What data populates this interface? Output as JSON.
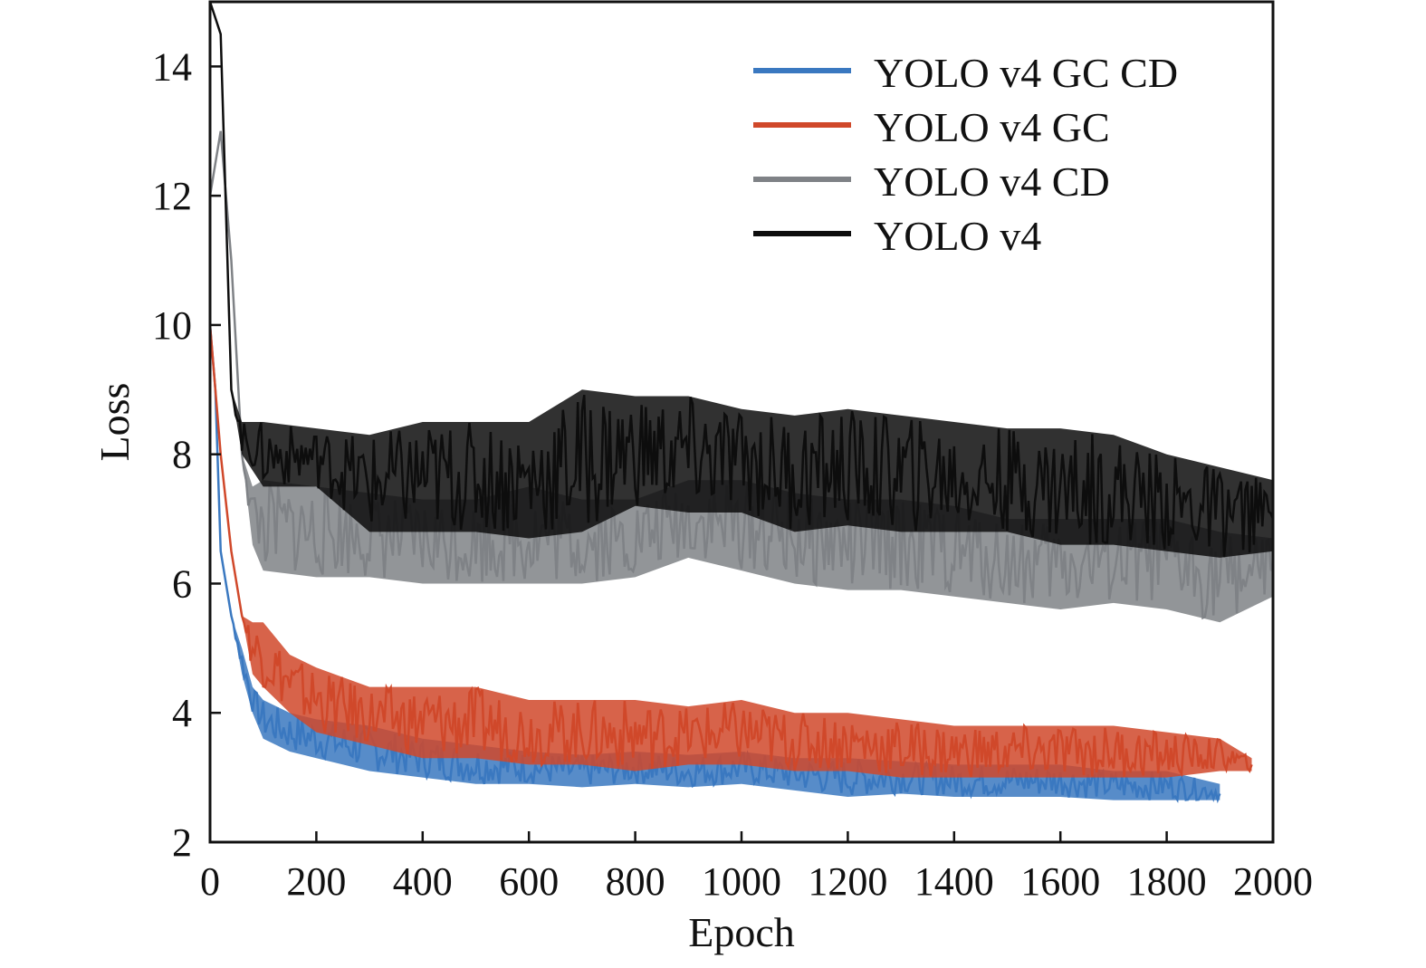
{
  "chart_data": {
    "type": "line",
    "title": "",
    "xlabel": "Epoch",
    "ylabel": "Loss",
    "xlim": [
      0,
      2000
    ],
    "ylim": [
      2,
      15
    ],
    "xticks": [
      0,
      200,
      400,
      600,
      800,
      1000,
      1200,
      1400,
      1600,
      1800,
      2000
    ],
    "yticks": [
      2,
      4,
      6,
      8,
      10,
      12,
      14
    ],
    "grid": false,
    "legend_position": "top-right",
    "series": [
      {
        "name": "YOLO v4 GC CD",
        "color": "#3a78c0",
        "x": [
          0,
          10,
          20,
          40,
          60,
          80,
          100,
          150,
          200,
          300,
          400,
          500,
          600,
          700,
          800,
          900,
          1000,
          1100,
          1200,
          1300,
          1400,
          1500,
          1600,
          1700,
          1800,
          1900
        ],
        "y": [
          10,
          9,
          6.5,
          5.5,
          4.8,
          4.2,
          3.9,
          3.7,
          3.6,
          3.4,
          3.3,
          3.2,
          3.1,
          3.05,
          3.1,
          3.05,
          3.1,
          3.0,
          2.95,
          2.95,
          2.9,
          2.9,
          2.9,
          2.85,
          2.85,
          2.75
        ],
        "low": [
          10,
          9,
          6.5,
          5.5,
          4.6,
          4.0,
          3.6,
          3.4,
          3.3,
          3.1,
          3.0,
          2.9,
          2.9,
          2.85,
          2.9,
          2.85,
          2.9,
          2.8,
          2.7,
          2.75,
          2.7,
          2.7,
          2.7,
          2.65,
          2.65,
          2.65
        ],
        "high": [
          10,
          9,
          6.5,
          5.5,
          5.0,
          4.4,
          4.2,
          4.0,
          3.9,
          3.8,
          3.6,
          3.5,
          3.4,
          3.35,
          3.4,
          3.35,
          3.4,
          3.3,
          3.3,
          3.25,
          3.2,
          3.2,
          3.2,
          3.1,
          3.1,
          2.9
        ]
      },
      {
        "name": "YOLO v4 GC",
        "color": "#d0482a",
        "x": [
          0,
          20,
          40,
          60,
          80,
          100,
          150,
          200,
          300,
          400,
          500,
          600,
          700,
          800,
          900,
          1000,
          1100,
          1200,
          1300,
          1400,
          1500,
          1600,
          1700,
          1800,
          1900,
          1960
        ],
        "y": [
          10,
          8,
          6.5,
          5.5,
          5.0,
          4.8,
          4.4,
          4.1,
          3.9,
          3.8,
          3.75,
          3.65,
          3.6,
          3.55,
          3.6,
          3.6,
          3.55,
          3.5,
          3.45,
          3.4,
          3.4,
          3.35,
          3.35,
          3.35,
          3.3,
          3.2
        ],
        "low": [
          10,
          8,
          6.5,
          5.5,
          4.6,
          4.4,
          4.0,
          3.7,
          3.5,
          3.3,
          3.3,
          3.2,
          3.2,
          3.1,
          3.2,
          3.2,
          3.1,
          3.1,
          3.0,
          3.0,
          3.0,
          3.0,
          3.0,
          3.0,
          3.1,
          3.1
        ],
        "high": [
          10,
          8,
          6.5,
          5.5,
          5.4,
          5.4,
          4.9,
          4.7,
          4.4,
          4.4,
          4.4,
          4.2,
          4.2,
          4.2,
          4.1,
          4.2,
          4.0,
          4.0,
          3.9,
          3.8,
          3.8,
          3.8,
          3.8,
          3.7,
          3.6,
          3.3
        ]
      },
      {
        "name": "YOLO v4 CD",
        "color": "#7f8286",
        "x": [
          0,
          20,
          40,
          60,
          80,
          100,
          200,
          300,
          400,
          500,
          600,
          700,
          800,
          900,
          1000,
          1100,
          1200,
          1300,
          1400,
          1500,
          1600,
          1700,
          1800,
          1900,
          2000
        ],
        "y": [
          12,
          13,
          11,
          8,
          7,
          6.9,
          6.8,
          6.7,
          6.6,
          6.6,
          6.7,
          6.6,
          6.7,
          7.0,
          6.9,
          6.7,
          6.6,
          6.6,
          6.5,
          6.4,
          6.3,
          6.3,
          6.3,
          6.0,
          6.2
        ],
        "low": [
          12,
          13,
          11,
          8,
          6.6,
          6.2,
          6.1,
          6.1,
          6.0,
          6.0,
          6.0,
          6.0,
          6.1,
          6.4,
          6.2,
          6.0,
          5.9,
          5.9,
          5.8,
          5.7,
          5.6,
          5.7,
          5.6,
          5.4,
          5.8
        ],
        "high": [
          12,
          13,
          11,
          8,
          7.5,
          7.6,
          7.5,
          7.4,
          7.3,
          7.3,
          7.5,
          7.3,
          7.3,
          7.6,
          7.6,
          7.4,
          7.3,
          7.3,
          7.2,
          7.0,
          7.0,
          7.0,
          7.0,
          6.8,
          6.7
        ]
      },
      {
        "name": "YOLO v4",
        "color": "#0d0d0d",
        "x": [
          0,
          20,
          40,
          60,
          100,
          200,
          300,
          400,
          500,
          600,
          700,
          800,
          900,
          1000,
          1100,
          1200,
          1300,
          1400,
          1500,
          1600,
          1700,
          1800,
          1900,
          2000
        ],
        "y": [
          15,
          14.5,
          9,
          8.2,
          7.9,
          7.8,
          7.3,
          7.3,
          7.4,
          7.5,
          7.6,
          7.9,
          7.9,
          7.8,
          7.6,
          7.6,
          7.6,
          7.4,
          7.5,
          7.4,
          7.3,
          7.2,
          7.0,
          7.0
        ],
        "low": [
          15,
          14.5,
          9,
          8.0,
          7.5,
          7.5,
          6.8,
          6.8,
          6.8,
          6.7,
          6.8,
          7.2,
          7.1,
          7.1,
          6.8,
          6.9,
          6.8,
          6.8,
          6.8,
          6.6,
          6.6,
          6.5,
          6.4,
          6.5
        ],
        "high": [
          15,
          14.5,
          9,
          8.5,
          8.5,
          8.4,
          8.3,
          8.5,
          8.5,
          8.5,
          9.0,
          8.9,
          8.9,
          8.7,
          8.6,
          8.7,
          8.6,
          8.5,
          8.4,
          8.4,
          8.3,
          8.0,
          7.8,
          7.6
        ]
      }
    ]
  }
}
